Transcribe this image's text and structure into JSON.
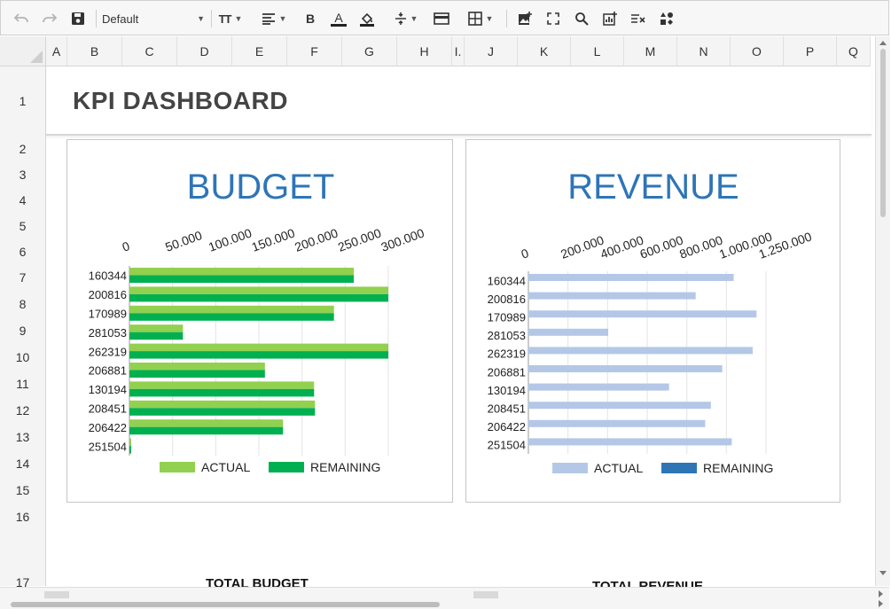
{
  "toolbar": {
    "font_family": "Default",
    "icons": [
      "undo-icon",
      "redo-icon",
      "save-icon",
      "font-size-icon",
      "align-icon",
      "bold-icon",
      "font-color-icon",
      "fill-color-icon",
      "row-height-icon",
      "merge-icon",
      "borders-icon",
      "insert-image-icon",
      "fullscreen-icon",
      "search-icon",
      "insert-chart-icon",
      "clear-format-icon",
      "shapes-icon"
    ],
    "bold_label": "B",
    "font_color_label": "A",
    "font_size_label": "TT"
  },
  "columns": [
    "A",
    "B",
    "C",
    "D",
    "E",
    "F",
    "G",
    "H",
    "I.",
    "J",
    "K",
    "L",
    "M",
    "N",
    "O",
    "P",
    "Q"
  ],
  "rows": [
    "1",
    "2",
    "3",
    "4",
    "5",
    "6",
    "7",
    "8",
    "9",
    "10",
    "11",
    "12",
    "13",
    "14",
    "15",
    "16",
    "17"
  ],
  "sheet": {
    "title": "KPI DASHBOARD",
    "total_budget_label": "TOTAL BUDGET",
    "total_revenue_label": "TOTAL REVENUE"
  },
  "colors": {
    "budget_actual": "#92d050",
    "budget_remaining": "#00b050",
    "revenue_actual": "#b4c7e7",
    "revenue_remaining": "#2e75b6",
    "title_blue": "#2e75b6"
  },
  "chart_data": [
    {
      "type": "bar",
      "title": "BUDGET",
      "orientation": "horizontal",
      "categories": [
        "160344",
        "200816",
        "170989",
        "281053",
        "262319",
        "206881",
        "130194",
        "208451",
        "206422",
        "251504"
      ],
      "series": [
        {
          "name": "ACTUAL",
          "values": [
            260000,
            300000,
            237000,
            62000,
            300000,
            157000,
            214000,
            215000,
            178000,
            2000
          ]
        },
        {
          "name": "REMAINING",
          "values": [
            260000,
            300000,
            237000,
            62000,
            300000,
            157000,
            214000,
            215000,
            178000,
            2000
          ]
        }
      ],
      "xlim": [
        0,
        300000
      ],
      "xticks": [
        "0",
        "50.000",
        "100.000",
        "150.000",
        "200.000",
        "250.000",
        "300.000"
      ],
      "legend": "bottom"
    },
    {
      "type": "bar",
      "title": "REVENUE",
      "orientation": "horizontal",
      "categories": [
        "160344",
        "200816",
        "170989",
        "281053",
        "262319",
        "206881",
        "130194",
        "208451",
        "206422",
        "251504"
      ],
      "series": [
        {
          "name": "ACTUAL",
          "values": [
            1080000,
            880000,
            1200000,
            420000,
            1180000,
            1020000,
            740000,
            960000,
            930000,
            1070000
          ]
        },
        {
          "name": "REMAINING",
          "values": [
            0,
            0,
            0,
            0,
            0,
            0,
            0,
            0,
            0,
            0
          ]
        }
      ],
      "xlim": [
        0,
        1250000
      ],
      "xticks": [
        "0",
        "200.000",
        "400.000",
        "600.000",
        "800.000",
        "1.000.000",
        "1.250.000"
      ],
      "legend": "bottom"
    }
  ]
}
